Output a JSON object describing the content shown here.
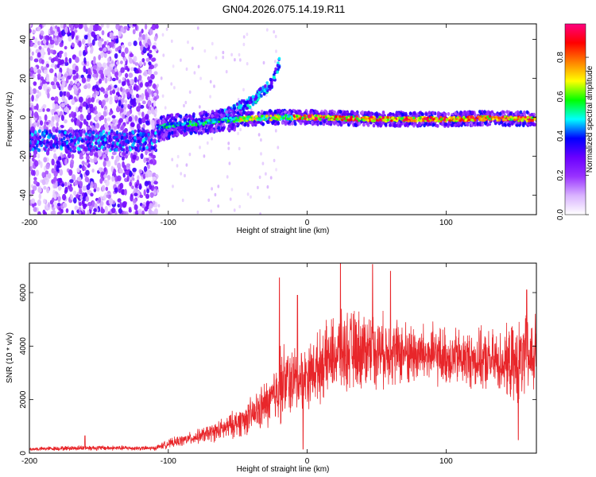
{
  "title": "GN04.2026.075.14.19.R11",
  "chart_data": [
    {
      "id": "spectrogram",
      "type": "heatmap",
      "xlabel": "Height of straight line (km)",
      "ylabel": "Frequency (Hz)",
      "xlim": [
        -200,
        165
      ],
      "ylim": [
        -50,
        48
      ],
      "xticks": [
        -200,
        -100,
        0,
        100
      ],
      "xtick_labels": [
        "-200",
        "-100",
        "0",
        "100"
      ],
      "yticks": [
        -40,
        -20,
        0,
        20,
        40
      ],
      "ytick_labels": [
        "-40",
        "-20",
        "0",
        "20",
        "40"
      ],
      "colorbar": {
        "label": "Normalized spectral amplitude",
        "range": [
          0,
          0.97
        ],
        "ticks": [
          0.0,
          0.2,
          0.4,
          0.6,
          0.8
        ],
        "tick_labels": [
          "0.0",
          "0.2",
          "0.4",
          "0.6",
          "0.8"
        ],
        "colormap": [
          "#ffffff",
          "#d9b3ff",
          "#9933ff",
          "#6a00ff",
          "#0000ff",
          "#00ffff",
          "#00ff00",
          "#ffff00",
          "#ff8000",
          "#ff0000",
          "#ff0080"
        ]
      },
      "features": [
        {
          "name": "noise-band",
          "x_range": [
            -200,
            -108
          ],
          "y_range": [
            -50,
            48
          ],
          "amplitude": [
            0.05,
            0.25
          ]
        },
        {
          "name": "low-band",
          "x_range": [
            -200,
            -108
          ],
          "frequency": -12,
          "amplitude": [
            0.2,
            0.5
          ]
        },
        {
          "name": "rising-branch",
          "x": [
            -108,
            -80,
            -60,
            -40,
            -25,
            -20
          ],
          "frequency": [
            -10,
            -4,
            2,
            8,
            18,
            28
          ],
          "amplitude": [
            0.15,
            0.4
          ]
        },
        {
          "name": "main-band",
          "x": [
            -108,
            -80,
            -50,
            -20,
            0,
            50,
            100,
            130,
            165
          ],
          "frequency": [
            -5,
            -3,
            -1,
            0,
            0,
            -1,
            -1,
            -0.5,
            -1
          ],
          "amplitude": [
            0.3,
            0.95
          ]
        }
      ]
    },
    {
      "id": "snr",
      "type": "line",
      "xlabel": "Height of straight line (km)",
      "ylabel": "SNR (10 * v/v)",
      "xlim": [
        -200,
        165
      ],
      "ylim": [
        0,
        7100
      ],
      "xticks": [
        -200,
        -100,
        0,
        100
      ],
      "xtick_labels": [
        "-200",
        "-100",
        "0",
        "100"
      ],
      "yticks": [
        0,
        2000,
        4000,
        6000
      ],
      "ytick_labels": [
        "0",
        "2000",
        "4000",
        "6000"
      ],
      "color": "#e8262a",
      "envelope": {
        "x": [
          -200,
          -160,
          -110,
          -100,
          -80,
          -60,
          -40,
          -25,
          -20,
          -10,
          0,
          20,
          40,
          60,
          80,
          100,
          120,
          140,
          150,
          160,
          165
        ],
        "mean": [
          150,
          200,
          180,
          350,
          600,
          900,
          1400,
          2000,
          2600,
          2700,
          2900,
          3700,
          3900,
          3800,
          3700,
          3600,
          3500,
          3400,
          3300,
          3600,
          3700
        ],
        "spread": [
          80,
          120,
          100,
          200,
          300,
          500,
          800,
          1200,
          1800,
          1500,
          1400,
          1700,
          1800,
          1500,
          1400,
          1300,
          1300,
          1400,
          1800,
          1900,
          1800
        ]
      },
      "peaks": [
        {
          "x": -160,
          "y": 650
        },
        {
          "x": -20,
          "y": 6550
        },
        {
          "x": -7,
          "y": 5900
        },
        {
          "x": 24,
          "y": 7100
        },
        {
          "x": 47,
          "y": 7050
        },
        {
          "x": 60,
          "y": 6800
        },
        {
          "x": 152,
          "y": 6450
        },
        {
          "x": 158,
          "y": 6100
        }
      ],
      "dips": [
        {
          "x": -3,
          "y": 150
        },
        {
          "x": 152,
          "y": 500
        }
      ]
    }
  ]
}
